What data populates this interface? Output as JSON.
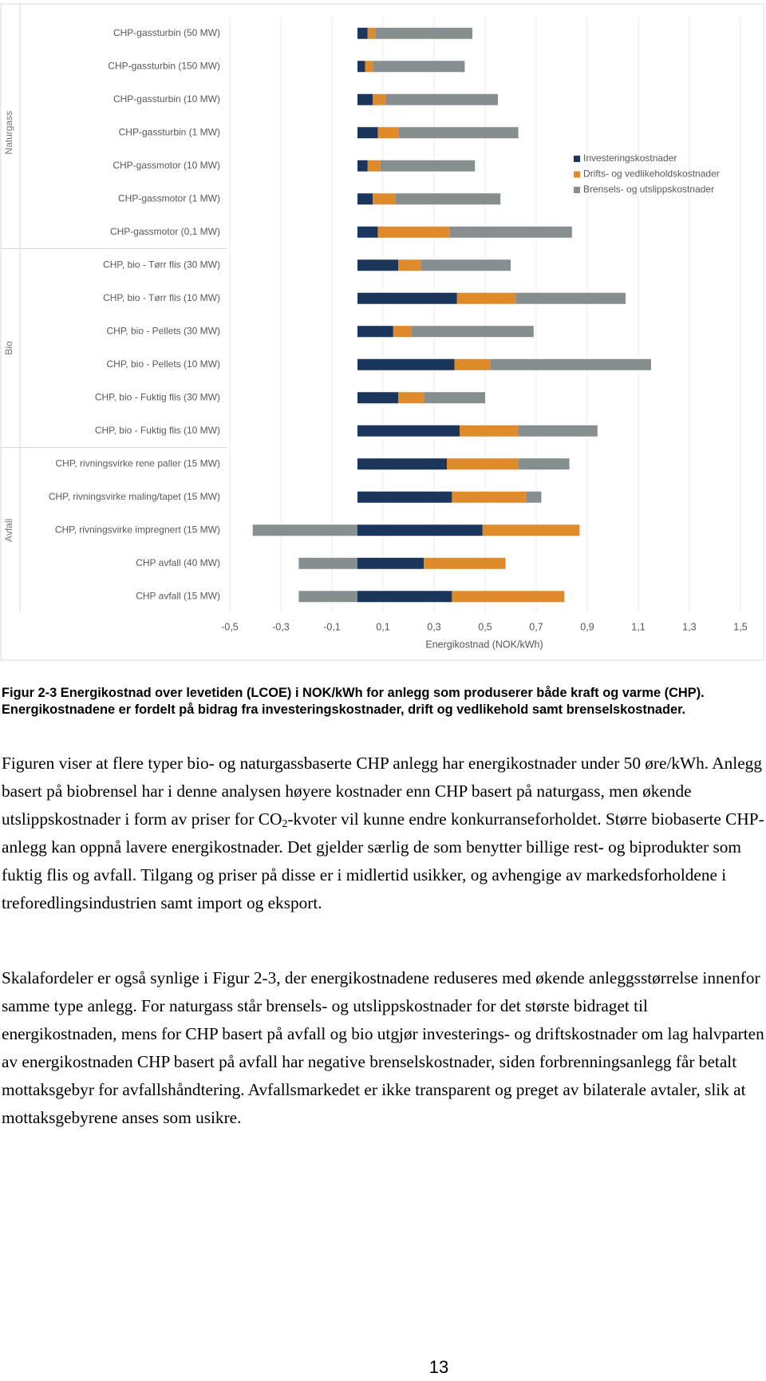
{
  "chart_data": {
    "type": "bar",
    "orientation": "horizontal",
    "stacked": true,
    "grid": true,
    "legend": "right",
    "x_label": "Energikostnad (NOK/kWh)",
    "categories": [
      "CHP-gassturbin (50 MW)",
      "CHP-gassturbin (150 MW)",
      "CHP-gassturbin (10 MW)",
      "CHP-gassturbin (1 MW)",
      "CHP-gassmotor (10 MW)",
      "CHP-gassmotor (1 MW)",
      "CHP-gassmotor (0,1 MW)",
      "CHP, bio - Tørr flis (30 MW)",
      "CHP, bio - Tørr flis (10 MW)",
      "CHP, bio - Pellets (30 MW)",
      "CHP, bio - Pellets (10 MW)",
      "CHP, bio - Fuktig flis (30 MW)",
      "CHP, bio - Fuktig flis (10 MW)",
      "CHP, rivningsvirke rene paller (15 MW)",
      "CHP, rivningsvirke maling/tapet (15 MW)",
      "CHP, rivningsvirke impregnert (15 MW)",
      "CHP avfall (40 MW)",
      "CHP avfall (15 MW)"
    ],
    "groups": [
      {
        "label": "Naturgass",
        "size": 7
      },
      {
        "label": "Bio",
        "size": 6
      },
      {
        "label": "Avfall",
        "size": 5
      }
    ],
    "series": [
      {
        "name": "Investeringskostnader",
        "color": "#1b365d",
        "values": [
          0.04,
          0.03,
          0.06,
          0.08,
          0.04,
          0.06,
          0.08,
          0.16,
          0.39,
          0.14,
          0.38,
          0.16,
          0.4,
          0.35,
          0.37,
          0.49,
          0.26,
          0.37
        ]
      },
      {
        "name": "Drifts- og vedlikeholdskostnader",
        "color": "#df8a2b",
        "values": [
          0.03,
          0.03,
          0.05,
          0.08,
          0.05,
          0.09,
          0.28,
          0.09,
          0.23,
          0.07,
          0.14,
          0.1,
          0.23,
          0.28,
          0.29,
          0.38,
          0.32,
          0.44
        ]
      },
      {
        "name": "Brensels- og utslippskostnader",
        "color": "#868e90",
        "values": [
          0.38,
          0.36,
          0.44,
          0.47,
          0.37,
          0.41,
          0.48,
          0.35,
          0.43,
          0.48,
          0.63,
          0.24,
          0.31,
          0.2,
          0.06,
          -0.41,
          -0.23,
          -0.23
        ]
      }
    ],
    "xlim": [
      -0.5,
      1.5
    ],
    "xticks": [
      {
        "value": -0.5,
        "label": "-0,5"
      },
      {
        "value": -0.3,
        "label": "-0,3"
      },
      {
        "value": -0.1,
        "label": "-0,1"
      },
      {
        "value": 0.1,
        "label": "0,1"
      },
      {
        "value": 0.3,
        "label": "0,3"
      },
      {
        "value": 0.5,
        "label": "0,5"
      },
      {
        "value": 0.7,
        "label": "0,7"
      },
      {
        "value": 0.9,
        "label": "0,9"
      },
      {
        "value": 1.1,
        "label": "1,1"
      },
      {
        "value": 1.3,
        "label": "1,3"
      },
      {
        "value": 1.5,
        "label": "1,5"
      }
    ]
  },
  "caption": "Figur 2-3 Energikostnad over levetiden (LCOE) i NOK/kWh for anlegg som produserer både kraft og varme (CHP). Energikostnadene er fordelt på bidrag fra investeringskostnader, drift og vedlikehold samt brenselskostnader.",
  "paragraph_1": {
    "before": "Figuren viser at flere typer bio- og naturgassbaserte CHP anlegg har energikostnader under 50 øre/kWh.  Anlegg basert på biobrensel har i denne analysen høyere kostnader enn CHP basert på naturgass, men økende utslippskostnader i form av priser for CO",
    "subscript": "2",
    "after": "-kvoter vil kunne endre konkurranseforholdet. Større biobaserte CHP-anlegg kan oppnå lavere energikostnader. Det gjelder særlig de som benytter billige rest- og biprodukter som fuktig flis og avfall.  Tilgang og priser på disse er i midlertid usikker, og avhengige av markedsforholdene i treforedlingsindustrien samt import og eksport."
  },
  "paragraph_2": "Skalafordeler er også synlige i Figur 2-3, der energikostnadene reduseres med økende anleggsstørrelse innenfor samme type anlegg. For naturgass står brensels- og utslippskostnader for det største bidraget til energikostnaden, mens for CHP basert på avfall og bio utgjør investerings- og driftskostnader om lag halvparten av energikostnaden CHP basert på avfall har negative brenselskostnader, siden forbrenningsanlegg får betalt mottaksgebyr for avfallshåndtering. Avfallsmarkedet er ikke transparent og preget av bilaterale avtaler, slik at mottaksgebyrene anses som usikre.",
  "page_number": "13"
}
